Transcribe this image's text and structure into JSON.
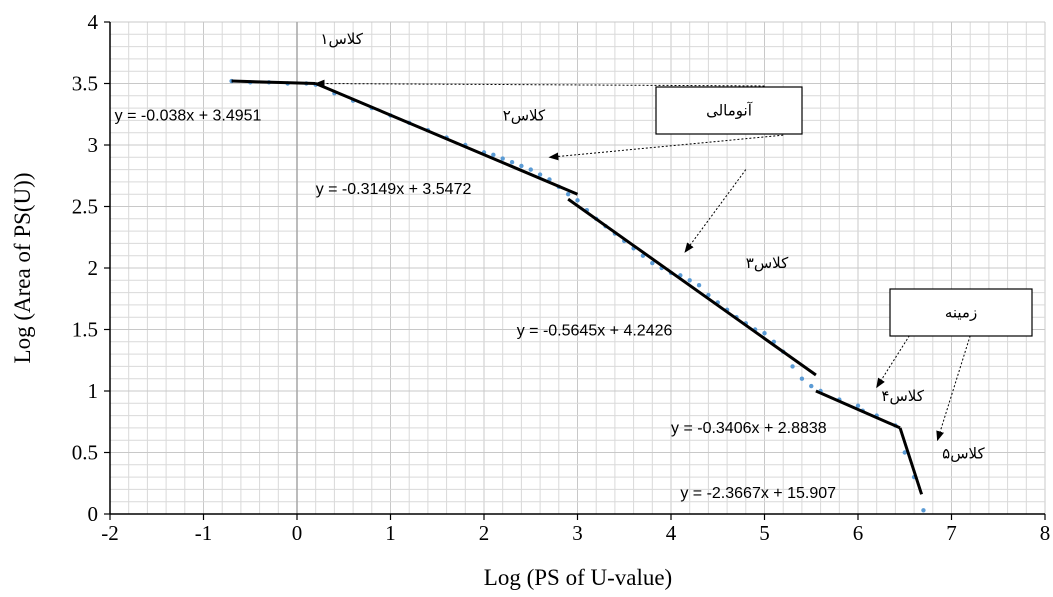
{
  "chart_data": {
    "type": "scatter",
    "xlabel": "Log (PS of U-value)",
    "ylabel": "Log (Area of PS(U))",
    "xlim": [
      -2,
      8
    ],
    "ylim": [
      0,
      4
    ],
    "x_ticks": [
      "-2",
      "-1",
      "0",
      "1",
      "2",
      "3",
      "4",
      "5",
      "6",
      "7",
      "8"
    ],
    "y_ticks": [
      "0",
      "0.5",
      "1",
      "1.5",
      "2",
      "2.5",
      "3",
      "3.5",
      "4"
    ],
    "grid": true,
    "colors": {
      "points": "#5b9bd5",
      "fit": "#000000",
      "grid": "#d9d9d9"
    },
    "points_x": [
      -0.7,
      -0.5,
      -0.3,
      -0.1,
      0.1,
      0.2,
      0.4,
      0.6,
      0.8,
      1.0,
      1.2,
      1.4,
      1.6,
      1.8,
      2.0,
      2.1,
      2.2,
      2.3,
      2.4,
      2.5,
      2.6,
      2.7,
      2.8,
      2.9,
      3.0,
      3.1,
      3.2,
      3.3,
      3.4,
      3.5,
      3.6,
      3.7,
      3.8,
      3.9,
      4.0,
      4.1,
      4.2,
      4.3,
      4.4,
      4.5,
      4.6,
      4.7,
      4.8,
      4.9,
      5.0,
      5.1,
      5.2,
      5.3,
      5.4,
      5.5,
      5.6,
      5.8,
      6.0,
      6.05,
      6.2,
      6.4,
      6.5,
      6.6,
      6.7
    ],
    "points_y": [
      3.52,
      3.51,
      3.51,
      3.5,
      3.5,
      3.49,
      3.42,
      3.36,
      3.3,
      3.24,
      3.18,
      3.12,
      3.06,
      3.0,
      2.94,
      2.92,
      2.89,
      2.86,
      2.83,
      2.8,
      2.76,
      2.72,
      2.66,
      2.6,
      2.55,
      2.47,
      2.4,
      2.34,
      2.28,
      2.22,
      2.16,
      2.1,
      2.04,
      2.0,
      1.96,
      1.94,
      1.9,
      1.86,
      1.78,
      1.72,
      1.66,
      1.6,
      1.55,
      1.5,
      1.47,
      1.4,
      1.32,
      1.2,
      1.1,
      1.04,
      1.0,
      0.93,
      0.88,
      0.84,
      0.8,
      0.72,
      0.5,
      0.3,
      0.03
    ],
    "segments": [
      {
        "x": [
          -0.7,
          0.2
        ],
        "y": [
          3.52,
          3.5
        ]
      },
      {
        "x": [
          0.2,
          3.0
        ],
        "y": [
          3.5,
          2.6
        ]
      },
      {
        "x": [
          2.9,
          5.55
        ],
        "y": [
          2.56,
          1.13
        ]
      },
      {
        "x": [
          5.55,
          6.45
        ],
        "y": [
          1.0,
          0.7
        ]
      },
      {
        "x": [
          6.45,
          6.68
        ],
        "y": [
          0.7,
          0.16
        ]
      }
    ],
    "equations": [
      {
        "text": "y = -0.038x + 3.4951",
        "x": -1.95,
        "y": 3.2
      },
      {
        "text": "y = -0.3149x + 3.5472",
        "x": 0.2,
        "y": 2.6
      },
      {
        "text": "y = -0.5645x + 4.2426",
        "x": 2.35,
        "y": 1.45
      },
      {
        "text": "y = -0.3406x + 2.8838",
        "x": 4.0,
        "y": 0.66
      },
      {
        "text": "y = -2.3667x + 15.907",
        "x": 4.1,
        "y": 0.13
      }
    ],
    "class_labels": [
      {
        "text": "کلاس۱",
        "x": 0.25,
        "y": 3.82
      },
      {
        "text": "کلاس۲",
        "x": 2.2,
        "y": 3.2
      },
      {
        "text": "کلاس۳",
        "x": 4.8,
        "y": 2.0
      },
      {
        "text": "کلاس۴",
        "x": 6.25,
        "y": 0.92
      },
      {
        "text": "کلاس۵",
        "x": 6.9,
        "y": 0.45
      }
    ],
    "boxes": [
      {
        "text": "آنومالی",
        "arrows": [
          {
            "from": [
              5.0,
              3.48
            ],
            "to": [
              0.2,
              3.5
            ]
          },
          {
            "from": [
              5.2,
              3.08
            ],
            "to": [
              2.7,
              2.9
            ]
          },
          {
            "from": [
              4.8,
              2.8
            ],
            "to": [
              4.15,
              2.13
            ]
          }
        ]
      },
      {
        "text": "زمینه",
        "arrows": [
          {
            "from": [
              6.55,
              1.45
            ],
            "to": [
              6.2,
              1.03
            ]
          },
          {
            "from": [
              7.2,
              1.45
            ],
            "to": [
              6.85,
              0.6
            ]
          }
        ]
      }
    ]
  }
}
